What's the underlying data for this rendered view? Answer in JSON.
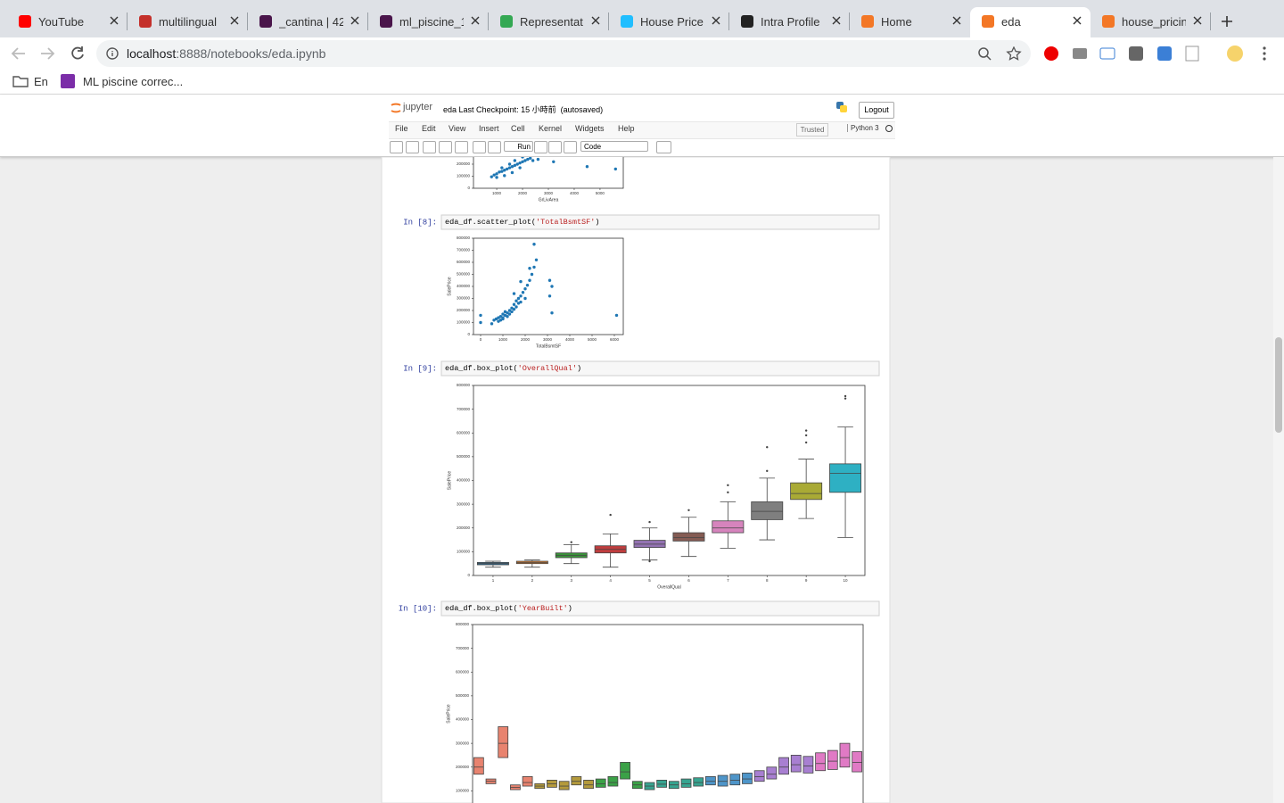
{
  "browser": {
    "tabs": [
      "YouTube",
      "multilingual",
      "_cantina | 42",
      "ml_piscine_1",
      "Representat",
      "House Price",
      "Intra Profile",
      "Home",
      "eda",
      "house_pricin"
    ],
    "url_host": "localhost",
    "url_path": ":8888/notebooks/eda.ipynb",
    "bookmarks": [
      "En",
      "ML piscine correc..."
    ]
  },
  "jupyter": {
    "logo": "jupyter",
    "notebook_name": "eda",
    "checkpoint": "Last Checkpoint: 15 小時前",
    "autosave": "(autosaved)",
    "logout": "Logout",
    "menu": [
      "File",
      "Edit",
      "View",
      "Insert",
      "Cell",
      "Kernel",
      "Widgets",
      "Help"
    ],
    "trusted": "Trusted",
    "kernel": "Python 3",
    "run": "Run",
    "cell_type": "Code"
  },
  "cells": [
    {
      "output": {
        "type": "scatter",
        "xlabel": "GrLivArea",
        "color": "#1f77b4",
        "x": [
          800,
          900,
          1000,
          1100,
          1200,
          1300,
          1400,
          1500,
          1600,
          1700,
          1800,
          1900,
          2000,
          2100,
          2200,
          2300,
          1200,
          1500,
          1700,
          2000,
          2400,
          2600,
          3200,
          4500,
          5600,
          1000,
          1300,
          1600,
          1900
        ],
        "y": [
          95000,
          110000,
          120000,
          135000,
          140000,
          150000,
          160000,
          170000,
          180000,
          190000,
          200000,
          210000,
          220000,
          230000,
          240000,
          250000,
          170000,
          200000,
          230000,
          260000,
          230000,
          240000,
          220000,
          180000,
          160000,
          90000,
          105000,
          130000,
          170000
        ],
        "xlim": [
          100,
          5900
        ],
        "ylim": [
          0,
          800000
        ],
        "xticks": [
          1000,
          2000,
          3000,
          4000,
          5000
        ],
        "yticks": [
          0,
          100000,
          200000
        ]
      }
    },
    {
      "prompt": "In [8]:",
      "code": {
        "call": "eda_df.scatter_plot(",
        "arg": "'TotalBsmtSF'",
        "close": ")"
      },
      "output": {
        "type": "scatter",
        "xlabel": "TotalBsmtSF",
        "ylabel": "SalePrice",
        "color": "#1f77b4",
        "x": [
          0,
          0,
          500,
          600,
          700,
          800,
          800,
          900,
          900,
          1000,
          1000,
          1000,
          1100,
          1100,
          1200,
          1200,
          1300,
          1300,
          1400,
          1400,
          1500,
          1500,
          1600,
          1600,
          1700,
          1700,
          1800,
          1800,
          1900,
          2000,
          2000,
          2100,
          2200,
          2300,
          2400,
          2500,
          2400,
          2200,
          3100,
          3200,
          3200,
          3100,
          6100,
          1500,
          1800
        ],
        "y": [
          100000,
          160000,
          90000,
          120000,
          130000,
          110000,
          140000,
          150000,
          120000,
          140000,
          170000,
          130000,
          160000,
          190000,
          180000,
          150000,
          200000,
          170000,
          220000,
          190000,
          250000,
          210000,
          230000,
          280000,
          300000,
          260000,
          320000,
          270000,
          350000,
          380000,
          300000,
          410000,
          450000,
          500000,
          560000,
          620000,
          750000,
          550000,
          450000,
          400000,
          180000,
          320000,
          160000,
          340000,
          440000
        ],
        "xlim": [
          -320,
          6400
        ],
        "ylim": [
          0,
          800000
        ],
        "xticks": [
          0,
          1000,
          2000,
          3000,
          4000,
          5000,
          6000
        ],
        "yticks": [
          0,
          100000,
          200000,
          300000,
          400000,
          500000,
          600000,
          700000,
          800000
        ]
      }
    },
    {
      "prompt": "In [9]:",
      "code": {
        "call": "eda_df.box_plot(",
        "arg": "'OverallQual'",
        "close": ")"
      },
      "output": {
        "type": "box",
        "xlabel": "OverallQual",
        "ylabel": "SalePrice",
        "categories": [
          "1",
          "2",
          "3",
          "4",
          "5",
          "6",
          "7",
          "8",
          "9",
          "10"
        ],
        "colors": [
          "#3274a1",
          "#e1812c",
          "#3a923a",
          "#c03d3e",
          "#9372b2",
          "#845b53",
          "#d684bd",
          "#7f7f7f",
          "#a9aa35",
          "#2eb0c3"
        ],
        "low": [
          35000,
          35000,
          50000,
          35000,
          65000,
          80000,
          115000,
          150000,
          240000,
          160000
        ],
        "q1": [
          45000,
          50000,
          75000,
          95000,
          118000,
          145000,
          180000,
          235000,
          320000,
          350000
        ],
        "median": [
          50000,
          55000,
          85000,
          110000,
          132000,
          160000,
          200000,
          270000,
          345000,
          430000
        ],
        "q3": [
          55000,
          60000,
          95000,
          125000,
          148000,
          180000,
          230000,
          310000,
          390000,
          470000
        ],
        "high": [
          60000,
          65000,
          130000,
          175000,
          200000,
          245000,
          310000,
          410000,
          490000,
          625000
        ],
        "fliers": [
          [],
          [],
          [
            140000
          ],
          [
            255000
          ],
          [
            225000,
            60000
          ],
          [
            275000
          ],
          [
            350000,
            380000
          ],
          [
            540000,
            440000
          ],
          [
            560000,
            590000,
            610000
          ],
          [
            745000,
            755000
          ]
        ],
        "ylim": [
          0,
          800000
        ],
        "yticks": [
          0,
          100000,
          200000,
          300000,
          400000,
          500000,
          600000,
          700000,
          800000
        ]
      }
    },
    {
      "prompt": "In [10]:",
      "code": {
        "call": "eda_df.box_plot(",
        "arg": "'YearBuilt'",
        "close": ")"
      },
      "output": {
        "type": "box",
        "ylabel": "SalePrice",
        "palette": [
          "#e8836f",
          "#b49a3c",
          "#3ba147",
          "#37a490",
          "#4e95c9",
          "#a87fd1",
          "#e07ac5"
        ],
        "q1": [
          170000,
          130000,
          240000,
          105000,
          120000,
          110000,
          115000,
          105000,
          125000,
          110000,
          115000,
          120000,
          150000,
          110000,
          105000,
          115000,
          110000,
          115000,
          120000,
          125000,
          120000,
          125000,
          130000,
          140000,
          150000,
          170000,
          180000,
          175000,
          185000,
          190000,
          200000,
          180000
        ],
        "median": [
          200000,
          140000,
          300000,
          115000,
          135000,
          120000,
          130000,
          120000,
          140000,
          125000,
          130000,
          135000,
          180000,
          125000,
          120000,
          128000,
          125000,
          130000,
          135000,
          140000,
          140000,
          145000,
          150000,
          160000,
          170000,
          200000,
          210000,
          205000,
          215000,
          225000,
          240000,
          220000
        ],
        "q3": [
          240000,
          150000,
          370000,
          125000,
          160000,
          130000,
          145000,
          140000,
          160000,
          145000,
          150000,
          160000,
          220000,
          140000,
          135000,
          145000,
          140000,
          150000,
          155000,
          160000,
          165000,
          170000,
          175000,
          185000,
          200000,
          240000,
          250000,
          245000,
          260000,
          270000,
          300000,
          265000
        ],
        "ylim": [
          0,
          800000
        ],
        "yticks": [
          100000,
          200000,
          300000,
          400000,
          500000,
          600000,
          700000,
          800000
        ]
      }
    }
  ]
}
